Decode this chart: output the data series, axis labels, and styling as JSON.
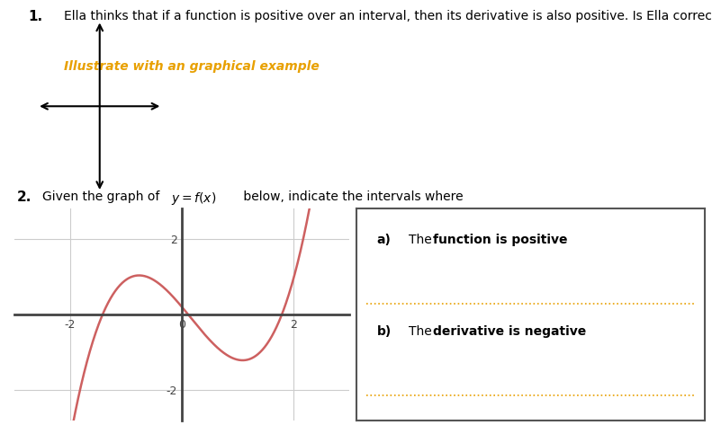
{
  "bg_color": "#ffffff",
  "text_color": "#000000",
  "orange_color": "#e8a000",
  "q1_number": "1.",
  "q1_text": "Ella thinks that if a function is positive over an interval, then its derivative is also positive. Is Ella correct? Explain.",
  "q1_italic": "Illustrate with an graphical example",
  "q2_number": "2.",
  "qa_label": "a)",
  "qa_bold": "function is positive",
  "qb_label": "b)",
  "qb_bold": "derivative is negative",
  "curve_color": "#cd6060",
  "axis_color": "#444444",
  "grid_color": "#cccccc",
  "xlim": [
    -3.0,
    3.0
  ],
  "ylim": [
    -2.8,
    2.8
  ],
  "xticks": [
    -2,
    0,
    2
  ],
  "yticks": [
    -2,
    2
  ],
  "box_border_color": "#555555",
  "label_color": "#2060c0"
}
